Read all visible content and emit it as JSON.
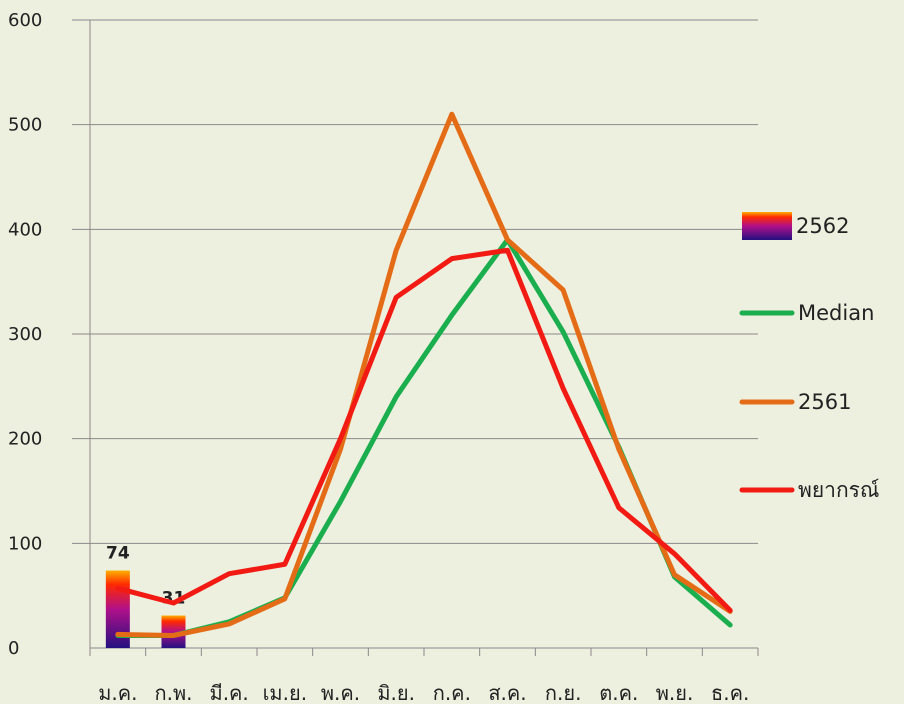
{
  "chart_data": {
    "type": "line",
    "categories": [
      "ม.ค.",
      "ก.พ.",
      "มี.ค.",
      "เม.ย.",
      "พ.ค.",
      "มิ.ย.",
      "ก.ค.",
      "ส.ค.",
      "ก.ย.",
      "ต.ค.",
      "พ.ย.",
      "ธ.ค."
    ],
    "ylim": [
      0,
      600
    ],
    "yticks": [
      0,
      100,
      200,
      300,
      400,
      500,
      600
    ],
    "grid": true,
    "legend_position": "right",
    "bar_series": {
      "name": "2562",
      "values": [
        74,
        31
      ],
      "data_labels": [
        "74",
        "31"
      ]
    },
    "series": [
      {
        "name": "Median",
        "color": "#1aae4e",
        "values": [
          12,
          12,
          25,
          48,
          140,
          240,
          318,
          390,
          302,
          192,
          68,
          22
        ]
      },
      {
        "name": "2561",
        "color": "#e46c17",
        "values": [
          13,
          12,
          23,
          47,
          190,
          380,
          510,
          390,
          342,
          190,
          70,
          35
        ]
      },
      {
        "name": "พยากรณ์",
        "color": "#f21b14",
        "values": [
          57,
          43,
          71,
          80,
          200,
          335,
          372,
          380,
          248,
          134,
          90,
          36
        ]
      }
    ]
  }
}
